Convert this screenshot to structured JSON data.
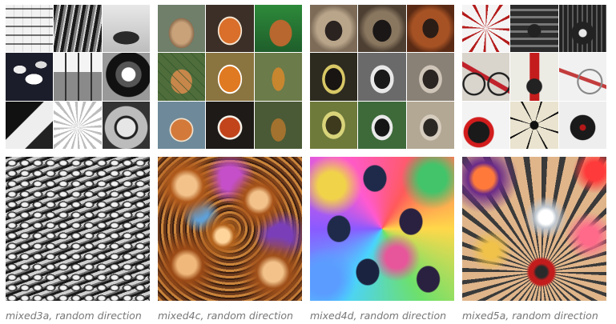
{
  "panels": [
    {
      "caption": "mixed3a, random direction",
      "grid_thumbnails": [
        "letter-chart-icon",
        "steel-bars-icon",
        "car-icon",
        "pills-icon",
        "power-lines-icon",
        "helmet-icon",
        "folded-paper-icon",
        "daisy-icon",
        "watch-icon"
      ],
      "visualization": "feature-visualization-mixed3a"
    },
    {
      "caption": "mixed4c, random direction",
      "grid_thumbnails": [
        "dog-icon",
        "fox-icon",
        "dog-icon",
        "dog-icon",
        "fox-icon",
        "fox-icon",
        "fox-icon",
        "red-panda-icon",
        "fox-icon"
      ],
      "visualization": "feature-visualization-mixed4c"
    },
    {
      "caption": "mixed4d, random direction",
      "grid_thumbnails": [
        "monkey-icon",
        "monkey-icon",
        "monkey-icon",
        "monkey-icon",
        "monkey-icon",
        "monkey-icon",
        "monkey-icon",
        "monkey-icon",
        "monkey-icon"
      ],
      "visualization": "feature-visualization-mixed4d"
    },
    {
      "caption": "mixed5a, random direction",
      "grid_thumbnails": [
        "spokes-icon",
        "typewriter-icon",
        "typewriter-icon",
        "bicycle-icon",
        "tricycle-icon",
        "bicycle-icon",
        "tricycle-icon",
        "spider-icon",
        "typewriter-icon"
      ],
      "visualization": "feature-visualization-mixed5a"
    }
  ]
}
